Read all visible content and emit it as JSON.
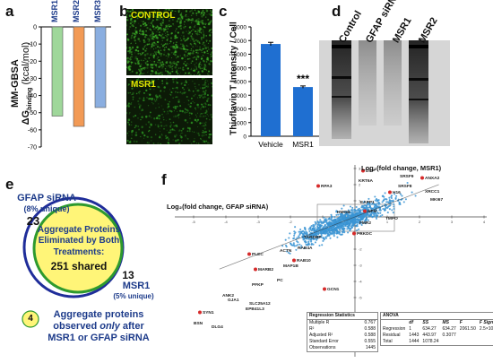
{
  "panels": {
    "a": {
      "letter": "a",
      "ylabel_pre": "MM-GBSA",
      "ylabel_delta": "ΔG",
      "ylabel_sub": "binding",
      "ylabel_unit": " (kcal/mol)",
      "bars": [
        {
          "label": "MSR1",
          "value": -52,
          "color": "#9fd79a"
        },
        {
          "label": "MSR2",
          "value": -58,
          "color": "#f29a55"
        },
        {
          "label": "MSR3",
          "value": -47,
          "color": "#8aaee0"
        }
      ],
      "ylim": [
        -70,
        0
      ],
      "yticks": [
        "0",
        "-10",
        "-20",
        "-30",
        "-40",
        "-50",
        "-60",
        "-70"
      ]
    },
    "b": {
      "letter": "b",
      "top_label": "CONTROL",
      "bottom_label": "MSR1"
    },
    "c": {
      "letter": "c",
      "ylabel": "Thioflavin T Intensity / Cell",
      "categories": [
        "Vehicle",
        "MSR1"
      ],
      "values": [
        6750,
        3600
      ],
      "errors": [
        120,
        80
      ],
      "colors": [
        "#1f6fd1",
        "#1f6fd1"
      ],
      "ylim": [
        0,
        8000
      ],
      "yticks": [
        "0",
        "1000",
        "2000",
        "3000",
        "4000",
        "5000",
        "6000",
        "7000",
        "8000"
      ],
      "significance": "***"
    },
    "d": {
      "letter": "d",
      "lanes": [
        "Control",
        "GFAP siRNA",
        "MSR1",
        "MSR2"
      ]
    },
    "e": {
      "letter": "e",
      "left_title": "GFAP siRNA",
      "left_unique": "(8% unique)",
      "left_count": "23",
      "center_line1": "Aggregate Proteins",
      "center_line2": "Eliminated by Both",
      "center_line3": "Treatments:",
      "center_line4": "251 shared",
      "right_count": "13",
      "right_title": "MSR1",
      "right_unique": "(5% unique)",
      "bottom_number": "4",
      "bottom_line1": "Aggregate proteins",
      "bottom_line2_pre": "observed ",
      "bottom_line2_em": "only",
      "bottom_line2_post": " after",
      "bottom_line3": "MSR1 or GFAP siRNA"
    },
    "f": {
      "letter": "f",
      "xlabel": "Log₂(fold change, GFAP siRNA)",
      "ylabel": "Log₂(fold change, MSR1)",
      "xtick_labels": [
        "-5",
        "-4",
        "-3",
        "-2",
        "-1",
        "1",
        "2",
        "3",
        "4"
      ],
      "ytick_labels": [
        "4",
        "3",
        "2",
        "1",
        "-1",
        "-2",
        "-3",
        "-4",
        "-5"
      ],
      "gene_labels": [
        "DSP",
        "SRSF9",
        "ANXA2",
        "KRT6A",
        "SRSF8",
        "H16",
        "XRCC1",
        "RPA3",
        "MKI67",
        "EAPP1",
        "NFM",
        "TMPO",
        "HMGB",
        "FMR2",
        "PRKDC",
        "TARDBP",
        "PLEC",
        "ACTN",
        "RAB4A",
        "MAP1B",
        "RAB10",
        "ANK2",
        "MARB2",
        "PC",
        "PFKP",
        "GCN1",
        "GJA1",
        "SLC25A12",
        "EPB41L3",
        "SYN1",
        "BSN",
        "DLG4"
      ],
      "regression_stats": {
        "title": "Regression Statistics",
        "rows": [
          [
            "Multiple R",
            "0.767"
          ],
          [
            "R²",
            "0.588"
          ],
          [
            "Adjusted R²",
            "0.588"
          ],
          [
            "Standard Error",
            "0.555"
          ],
          [
            "Observations",
            "1445"
          ]
        ]
      },
      "anova": {
        "title": "ANOVA",
        "headers": [
          "",
          "df",
          "SS",
          "MS",
          "F",
          "F Significance"
        ],
        "rows": [
          [
            "Regression",
            "1",
            "634.27",
            "634.27",
            "2061.50",
            "2.5×10⁻²⁸⁰"
          ],
          [
            "Residual",
            "1443",
            "443.97",
            "0.3077",
            "",
            ""
          ],
          [
            "Total",
            "1444",
            "1078.24",
            "",
            "",
            ""
          ]
        ]
      }
    }
  }
}
